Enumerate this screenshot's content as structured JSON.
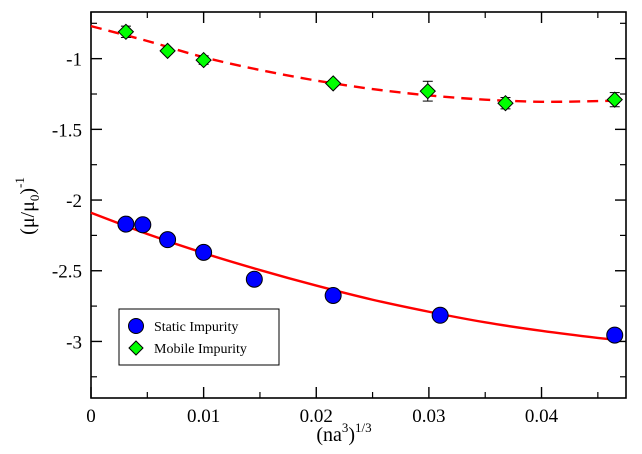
{
  "chart_data": {
    "type": "scatter",
    "xlabel": "(na",
    "xlabel_sup1": "3",
    "xlabel_paren": ")",
    "xlabel_sup2": "1/3",
    "ylabel": "(μ/μ",
    "ylabel_sub": "0",
    "ylabel_paren": ")",
    "ylabel_sup": "-1",
    "xlim": [
      0,
      0.0475
    ],
    "ylim": [
      -3.4,
      -0.67
    ],
    "xticks": [
      {
        "value": 0,
        "label": "0"
      },
      {
        "value": 0.01,
        "label": "0.01"
      },
      {
        "value": 0.02,
        "label": "0.02"
      },
      {
        "value": 0.03,
        "label": "0.03"
      },
      {
        "value": 0.04,
        "label": "0.04"
      }
    ],
    "yticks": [
      {
        "value": -1,
        "label": "-1"
      },
      {
        "value": -1.5,
        "label": "-1.5"
      },
      {
        "value": -2,
        "label": "-2"
      },
      {
        "value": -2.5,
        "label": "-2.5"
      },
      {
        "value": -3,
        "label": "-3"
      }
    ],
    "grid": false,
    "legend": {
      "position": "bottom-left"
    },
    "series": [
      {
        "name": "Static Impurity",
        "marker": "circle",
        "color": "#0000ff",
        "points": [
          {
            "x": 0.0031,
            "y": -2.17
          },
          {
            "x": 0.0046,
            "y": -2.175
          },
          {
            "x": 0.0068,
            "y": -2.28
          },
          {
            "x": 0.01,
            "y": -2.37
          },
          {
            "x": 0.0145,
            "y": -2.56
          },
          {
            "x": 0.0215,
            "y": -2.675
          },
          {
            "x": 0.031,
            "y": -2.815
          },
          {
            "x": 0.0465,
            "y": -2.955
          }
        ],
        "fit": {
          "style": "solid",
          "color": "#ff0000",
          "points": [
            [
              0,
              -2.09
            ],
            [
              0.005,
              -2.24
            ],
            [
              0.01,
              -2.375
            ],
            [
              0.015,
              -2.495
            ],
            [
              0.02,
              -2.605
            ],
            [
              0.025,
              -2.705
            ],
            [
              0.03,
              -2.79
            ],
            [
              0.035,
              -2.865
            ],
            [
              0.04,
              -2.925
            ],
            [
              0.045,
              -2.975
            ],
            [
              0.047,
              -2.99
            ]
          ]
        }
      },
      {
        "name": "Mobile Impurity",
        "marker": "diamond",
        "color": "#00ff00",
        "points": [
          {
            "x": 0.0031,
            "y": -0.81,
            "err": 0.04
          },
          {
            "x": 0.0068,
            "y": -0.945,
            "err": 0.02
          },
          {
            "x": 0.01,
            "y": -1.01,
            "err": 0.03
          },
          {
            "x": 0.0215,
            "y": -1.175,
            "err": 0.02
          },
          {
            "x": 0.0299,
            "y": -1.23,
            "err": 0.07
          },
          {
            "x": 0.0368,
            "y": -1.315,
            "err": 0.04
          },
          {
            "x": 0.0465,
            "y": -1.29,
            "err": 0.05
          }
        ],
        "fit": {
          "style": "dashed",
          "color": "#ff0000",
          "points": [
            [
              0,
              -0.77
            ],
            [
              0.005,
              -0.875
            ],
            [
              0.01,
              -0.99
            ],
            [
              0.015,
              -1.08
            ],
            [
              0.02,
              -1.155
            ],
            [
              0.025,
              -1.215
            ],
            [
              0.03,
              -1.26
            ],
            [
              0.035,
              -1.29
            ],
            [
              0.04,
              -1.305
            ],
            [
              0.045,
              -1.3
            ],
            [
              0.047,
              -1.295
            ]
          ]
        }
      }
    ]
  }
}
